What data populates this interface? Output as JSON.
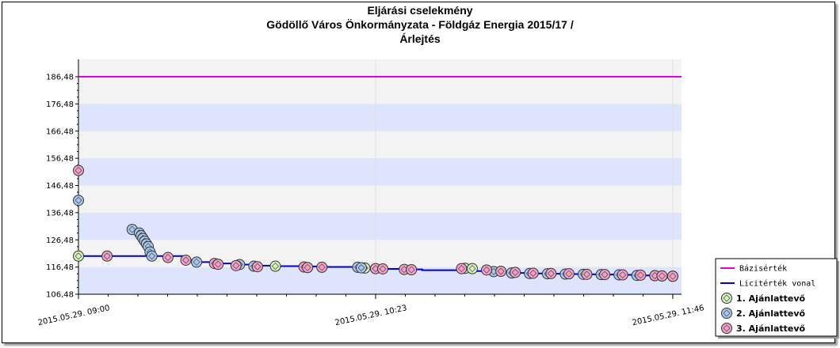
{
  "chart_data": {
    "type": "line",
    "title": [
      "Eljárási cselekmény",
      "Gödöllő Város Önkormányzata - Földgáz Energia 2015/17 /",
      "Árlejtés"
    ],
    "xlabel": "",
    "ylabel": "",
    "y_ticks": [
      "106,48",
      "116,48",
      "126,48",
      "136,48",
      "146,48",
      "156,48",
      "166,48",
      "176,48",
      "186,48"
    ],
    "y_tick_values": [
      106.48,
      116.48,
      126.48,
      136.48,
      146.48,
      156.48,
      166.48,
      176.48,
      186.48
    ],
    "ylim": [
      106.48,
      186.48
    ],
    "x_ticks": [
      "2015.05.29. 09:00",
      "2015.05.29. 10:23",
      "2015.05.29. 11:46"
    ],
    "x_tick_values": [
      0,
      83,
      166
    ],
    "xlim": [
      0,
      168
    ],
    "grid": "horizontal bands",
    "legend_position": "bottom-right",
    "base_value": 186.48,
    "series": [
      {
        "name": "Bázisérték",
        "kind": "line",
        "color": "#e000e0",
        "points": [
          [
            0,
            186.48
          ],
          [
            168,
            186.48
          ]
        ]
      },
      {
        "name": "Licitérték vonal",
        "kind": "step",
        "color": "#0000cc",
        "points": [
          [
            0,
            120.5
          ],
          [
            8,
            120.5
          ],
          [
            18,
            120.5
          ],
          [
            27,
            120.5
          ],
          [
            30,
            119.0
          ],
          [
            33,
            118.3
          ],
          [
            38,
            117.8
          ],
          [
            44,
            117.4
          ],
          [
            49,
            117.0
          ],
          [
            55,
            116.8
          ],
          [
            62,
            116.7
          ],
          [
            68,
            116.5
          ],
          [
            80,
            116.1
          ],
          [
            86,
            115.8
          ],
          [
            90,
            115.6
          ],
          [
            96,
            115.3
          ],
          [
            110,
            115.0
          ],
          [
            116,
            114.6
          ],
          [
            121,
            114.3
          ],
          [
            126,
            114.1
          ],
          [
            131,
            114.0
          ],
          [
            136,
            113.9
          ],
          [
            141,
            113.8
          ],
          [
            146,
            113.7
          ],
          [
            151,
            113.6
          ],
          [
            156,
            113.4
          ],
          [
            161,
            113.3
          ],
          [
            163,
            113.2
          ],
          [
            166,
            113.1
          ]
        ]
      },
      {
        "name": "1. Ajánlattevő",
        "kind": "markers",
        "color": "#d4f5c0",
        "points": [
          [
            0,
            120.5
          ],
          [
            55,
            116.8
          ],
          [
            80,
            116.1
          ],
          [
            108,
            116.0
          ],
          [
            110,
            115.9
          ]
        ]
      },
      {
        "name": "2. Ajánlattevő",
        "kind": "markers",
        "color": "#a8c8f0",
        "points": [
          [
            0,
            141.0
          ],
          [
            15,
            130.3
          ],
          [
            17,
            129.0
          ],
          [
            17.5,
            128.0
          ],
          [
            18,
            127.0
          ],
          [
            18.5,
            126.0
          ],
          [
            19,
            125.0
          ],
          [
            19.5,
            124.0
          ],
          [
            20,
            122.0
          ],
          [
            20.5,
            120.5
          ],
          [
            33,
            118.3
          ],
          [
            45,
            117.4
          ],
          [
            49,
            116.8
          ],
          [
            78,
            116.4
          ],
          [
            79,
            116.2
          ],
          [
            116,
            114.8
          ],
          [
            121,
            114.3
          ],
          [
            126,
            114.1
          ],
          [
            131,
            114.0
          ],
          [
            136,
            113.9
          ],
          [
            141,
            113.8
          ],
          [
            146,
            113.7
          ],
          [
            151,
            113.6
          ],
          [
            156,
            113.4
          ],
          [
            161,
            113.3
          ],
          [
            163,
            113.2
          ],
          [
            166,
            113.1
          ]
        ]
      },
      {
        "name": "3. Ajánlattevő",
        "kind": "markers",
        "color": "#f5a0c8",
        "points": [
          [
            0,
            152.0
          ],
          [
            8,
            120.5
          ],
          [
            25,
            120.0
          ],
          [
            30,
            119.0
          ],
          [
            38,
            117.8
          ],
          [
            39,
            117.5
          ],
          [
            44,
            117.0
          ],
          [
            50,
            116.6
          ],
          [
            63,
            116.5
          ],
          [
            64,
            116.3
          ],
          [
            68,
            116.4
          ],
          [
            83,
            115.9
          ],
          [
            85,
            115.8
          ],
          [
            91,
            115.6
          ],
          [
            93,
            115.5
          ],
          [
            107,
            115.9
          ],
          [
            114,
            115.4
          ],
          [
            118,
            114.9
          ],
          [
            122,
            114.5
          ],
          [
            127,
            114.2
          ],
          [
            132,
            114.1
          ],
          [
            137,
            114.0
          ],
          [
            142,
            113.8
          ],
          [
            147,
            113.7
          ],
          [
            152,
            113.6
          ],
          [
            157,
            113.5
          ],
          [
            161,
            113.3
          ],
          [
            163,
            113.2
          ],
          [
            166,
            113.1
          ]
        ]
      }
    ]
  },
  "legend": {
    "items": [
      {
        "label": "Bázisérték",
        "type": "line",
        "color": "#e000e0"
      },
      {
        "label": "Licitérték vonal",
        "type": "line",
        "color": "#0000cc"
      },
      {
        "label": "1. Ajánlattevő",
        "type": "marker",
        "color": "#d4f5c0"
      },
      {
        "label": "2. Ajánlattevő",
        "type": "marker",
        "color": "#a8c8f0"
      },
      {
        "label": "3. Ajánlattevő",
        "type": "marker",
        "color": "#f5a0c8"
      }
    ]
  },
  "colors": {
    "band_blue": "#dde4fb",
    "band_grey": "#f3f3f3",
    "axis": "#000000"
  }
}
